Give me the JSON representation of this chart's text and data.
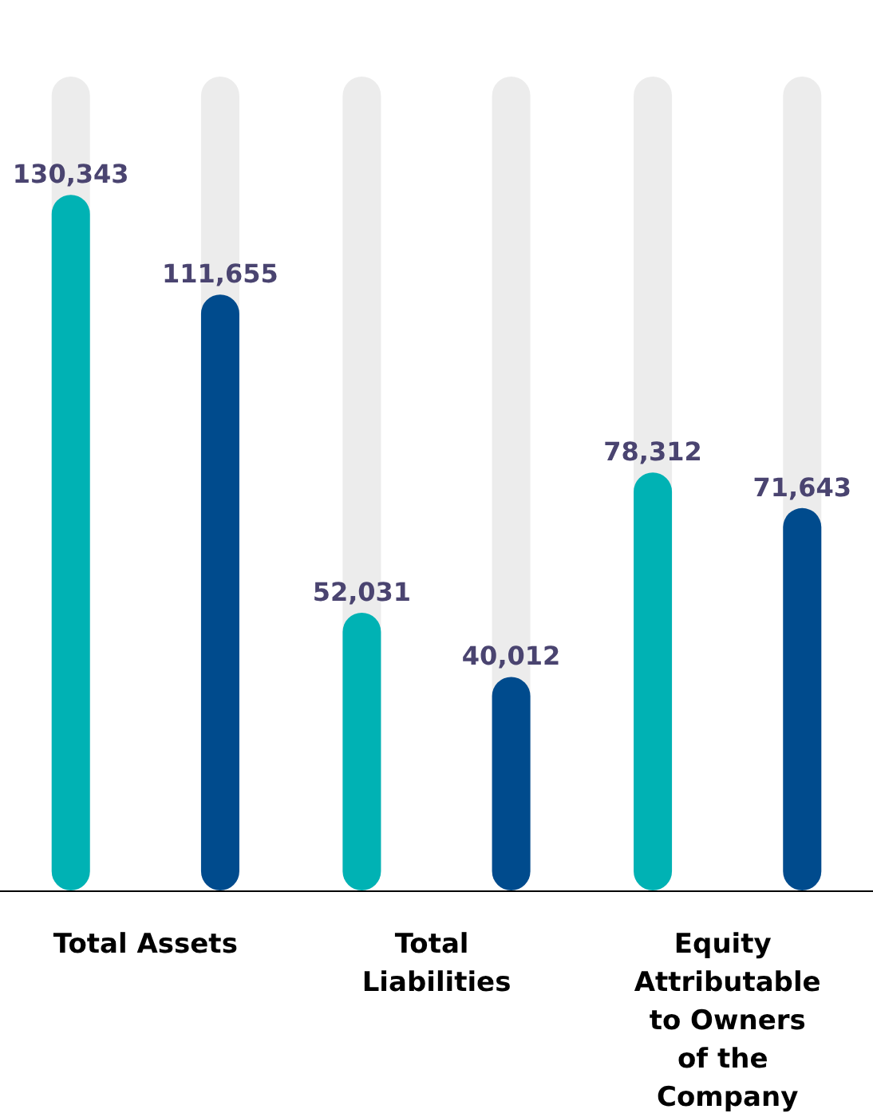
{
  "chart_data": {
    "type": "bar",
    "categories": [
      "Total Assets",
      "Total Liabilities",
      "Equity Attributable to Owners of the Company"
    ],
    "series": [
      {
        "color": "#00b2b4",
        "values": [
          130343,
          52031,
          78312
        ],
        "value_labels": [
          "130,343",
          "52,031",
          "78,312"
        ]
      },
      {
        "color": "#004b8d",
        "values": [
          111655,
          40012,
          71643
        ],
        "value_labels": [
          "111,655",
          "40,012",
          "71,643"
        ]
      }
    ]
  }
}
